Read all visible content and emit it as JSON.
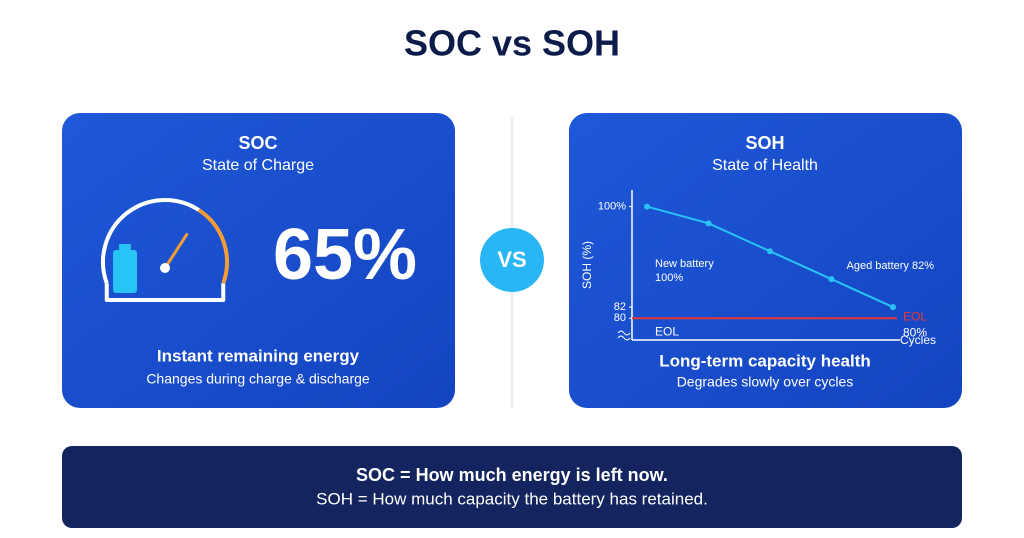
{
  "title": "SOC vs SOH",
  "soc": {
    "heading": "SOC",
    "subheading": "State of Charge",
    "value": 65,
    "value_label": "65%",
    "caption": "Instant remaining energy",
    "note": "Changes during charge & discharge"
  },
  "vs": "VS",
  "soh": {
    "heading": "SOH",
    "subheading": "State of Health",
    "chart": {
      "type": "line",
      "y_label": "SOH (%)",
      "x_label": "Cycles",
      "values": [
        100,
        97,
        92,
        87,
        82
      ],
      "color": "#29c4f6",
      "ylim": [
        77,
        101
      ],
      "yticks": [
        {
          "value": 100,
          "label": "100%"
        },
        82,
        80
      ],
      "eol": 80,
      "eol_color": "#e53935",
      "eol_label": "EOL",
      "eol_value_label": "80%",
      "new_battery_label": "New battery",
      "new_battery_value_label": "100%",
      "aged_battery_label": "Aged battery 82%"
    },
    "caption": "Long-term capacity health",
    "note": "Degrades slowly over cycles"
  },
  "summary": {
    "line1": "SOC = How much energy is left now.",
    "line2": "SOH = How much capacity the battery has retained."
  }
}
